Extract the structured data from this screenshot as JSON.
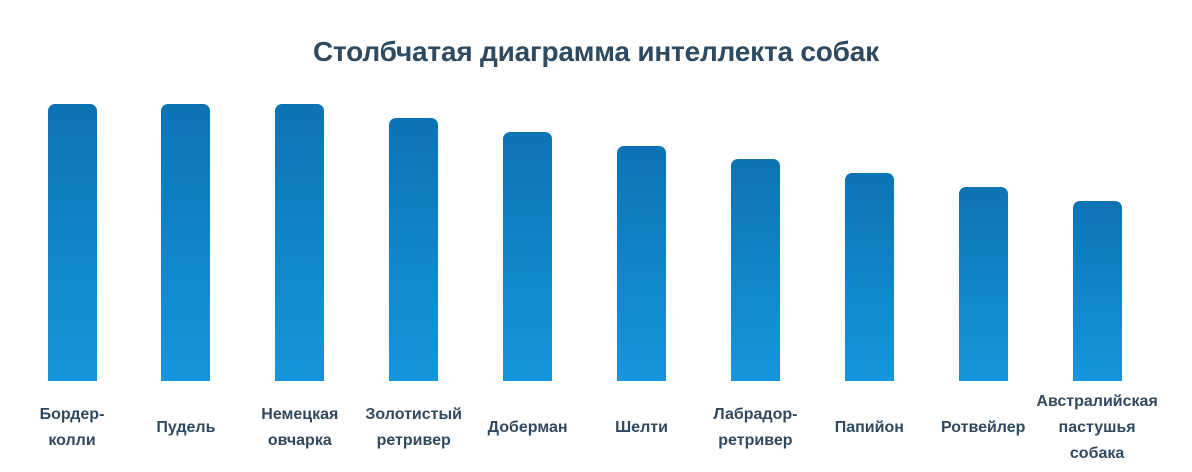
{
  "chart_data": {
    "type": "bar",
    "title": "Столбчатая диаграмма интеллекта собак",
    "categories": [
      "Бордер-колли",
      "Пудель",
      "Немецкая овчарка",
      "Золотистый ретривер",
      "Доберман",
      "Шелти",
      "Лабрадор-ретривер",
      "Папийон",
      "Ротвейлер",
      "Австралийская пастушья собака"
    ],
    "labels_multiline": [
      [
        "Бордер-",
        "колли"
      ],
      [
        "Пудель"
      ],
      [
        "Немецкая",
        "овчарка"
      ],
      [
        "Золотистый",
        "ретривер"
      ],
      [
        "Доберман"
      ],
      [
        "Шелти"
      ],
      [
        "Лабрадор-",
        "ретривер"
      ],
      [
        "Папийон"
      ],
      [
        "Ротвейлер"
      ],
      [
        "Австралийская",
        "пастушья",
        "собака"
      ]
    ],
    "values": [
      100,
      100,
      100,
      95,
      90,
      85,
      80,
      75,
      70,
      65
    ],
    "xlabel": "",
    "ylabel": "",
    "ylim": [
      0,
      100
    ],
    "grid": false,
    "legend": false,
    "axes_visible": false,
    "colors": {
      "bar_gradient_top": "#0c73b3",
      "bar_gradient_bottom": "#1596de",
      "title_text": "#2e4a61",
      "label_text": "#31495e",
      "background": "#ffffff"
    }
  }
}
